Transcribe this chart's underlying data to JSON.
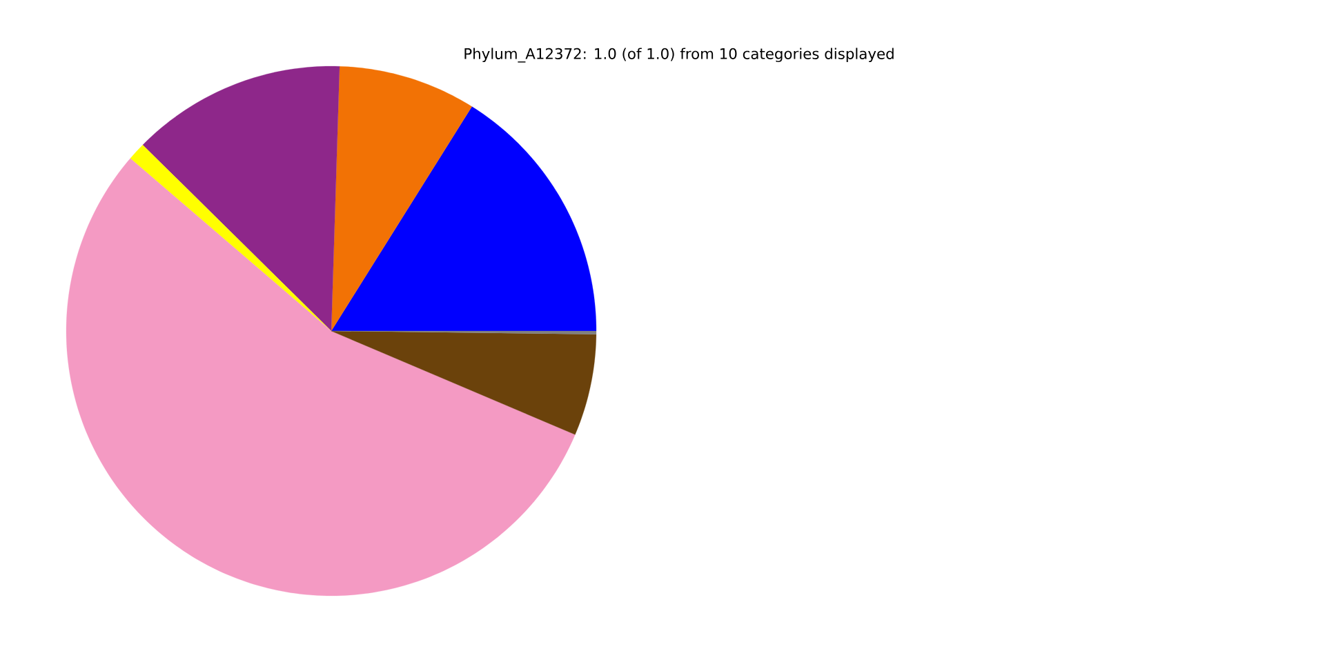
{
  "chart_data": {
    "type": "pie",
    "title": "Phylum_A12372: 1.0 (of 1.0) from 10 categories displayed",
    "categories": [
      null,
      null,
      null,
      null,
      null,
      null,
      null
    ],
    "values": [
      16.1,
      8.4,
      13.1,
      1.1,
      54.9,
      6.2,
      0.2
    ],
    "colors": [
      "#0000ff",
      "#f27205",
      "#8e278a",
      "#ffff00",
      "#f49ac3",
      "#6b420b",
      "#808080"
    ]
  }
}
